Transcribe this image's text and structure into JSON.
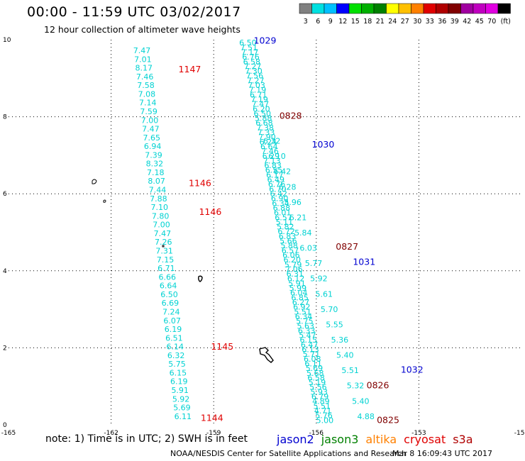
{
  "header": {
    "title": "00:00 - 11:59 UTC 03/02/2017",
    "subtitle": "12 hour collection of altimeter wave heights"
  },
  "colorbar": {
    "colors": [
      "#808080",
      "#00e0e0",
      "#00c0ff",
      "#0000ff",
      "#00e000",
      "#00b000",
      "#008000",
      "#ffff00",
      "#ffc000",
      "#ff8000",
      "#e00000",
      "#b00000",
      "#800000",
      "#a000a0",
      "#c000c0",
      "#e000e0",
      "#000000"
    ],
    "labels": [
      "3",
      "6",
      "9",
      "12",
      "15",
      "18",
      "21",
      "24",
      "27",
      "30",
      "33",
      "36",
      "39",
      "42",
      "45",
      "70",
      "(ft)"
    ]
  },
  "chart_data": {
    "type": "map",
    "xlim": [
      -165,
      -150
    ],
    "ylim": [
      0,
      10
    ],
    "x_ticks": [
      "-165",
      "-162",
      "-159",
      "-156",
      "-153",
      "-150"
    ],
    "y_ticks": [
      "0",
      "2",
      "4",
      "6",
      "8",
      "10"
    ],
    "grid": true,
    "tracks": [
      {
        "satellite": "jason2",
        "color": "#00d2d2",
        "x_start": -161.1,
        "y_start": 9.65,
        "x_end": -159.9,
        "y_end": 0.15,
        "values": [
          "7.47",
          "7.01",
          "8.17",
          "7.46",
          "7.58",
          "7.08",
          "7.14",
          "7.59",
          "7.00",
          "7.47",
          "7.65",
          "6.94",
          "7.39",
          "8.32",
          "7.18",
          "8.07",
          "7.44",
          "7.88",
          "7.10",
          "7.80",
          "7.00",
          "7.47",
          "7.26",
          "7.31",
          "7.15",
          "6.71",
          "6.66",
          "6.64",
          "6.50",
          "6.69",
          "7.24",
          "6.07",
          "6.19",
          "6.51",
          "6.14",
          "6.32",
          "5.75",
          "6.15",
          "6.19",
          "5.91",
          "5.92",
          "5.69",
          "6.11"
        ]
      },
      {
        "satellite": "jason2",
        "color": "#00d2d2",
        "x_start": -158.0,
        "y_start": 9.85,
        "x_end": -155.75,
        "y_end": 0.05,
        "values": [
          "6.50",
          "7.51",
          "7.17",
          "6.76",
          "6.58",
          "7.27",
          "7.30",
          "7.56",
          "7.27",
          "7.03",
          "7.19",
          "6.71",
          "7.19",
          "7.47",
          "6.20",
          "6.50",
          "5.88",
          "6.68",
          "7.38",
          "7.33",
          "7.90",
          "6.24",
          "6.64",
          "7.46",
          "6.29",
          "7.13",
          "6.83",
          "6.55",
          "6.17",
          "6.49",
          "6.76",
          "6.70",
          "6.42",
          "6.90",
          "6.34",
          "6.88",
          "6.01",
          "6.57",
          "5.11",
          "5.82",
          "6.72",
          "6.83",
          "5.66",
          "5.88",
          "6.57",
          "6.06",
          "6.20",
          "5.79",
          "7.06",
          "6.31",
          "6.12",
          "5.91",
          "5.99",
          "6.04",
          "6.85",
          "6.27",
          "6.92",
          "5.51",
          "6.34",
          "5.75",
          "5.63",
          "6.33",
          "5.47",
          "6.15",
          "6.47",
          "6.13",
          "5.71",
          "6.08",
          "6.11",
          "5.69",
          "5.68",
          "6.58",
          "5.19",
          "5.56",
          "5.93",
          "6.79",
          "4.89",
          "5.51",
          "4.71",
          "5.76",
          "5.00"
        ]
      },
      {
        "satellite": "jason2",
        "color": "#00d2d2",
        "x_start": -157.3,
        "y_start": 7.3,
        "x_end": -154.55,
        "y_end": 0.15,
        "values": [
          "6.32",
          "6.10",
          "6.42",
          "6.28",
          "5.96",
          "6.21",
          "5.84",
          "6.03",
          "5.77",
          "5.92",
          "5.61",
          "5.70",
          "5.55",
          "5.36",
          "5.40",
          "5.51",
          "5.32",
          "5.40",
          "4.88"
        ]
      }
    ],
    "pass_labels": [
      {
        "text": "1147",
        "satellite": "jason2",
        "x": -159.7,
        "y": 9.15,
        "color": "#e00000"
      },
      {
        "text": "1146",
        "satellite": "jason2",
        "x": -159.4,
        "y": 6.2,
        "color": "#e00000"
      },
      {
        "text": "1146",
        "satellite": "jason2",
        "x": -159.1,
        "y": 5.45,
        "color": "#e00000"
      },
      {
        "text": "1145",
        "satellite": "jason2",
        "x": -158.75,
        "y": 1.95,
        "color": "#e00000"
      },
      {
        "text": "1144",
        "satellite": "jason2",
        "x": -159.05,
        "y": 0.1,
        "color": "#e00000"
      },
      {
        "text": "1029",
        "satellite": "jason2",
        "x": -157.5,
        "y": 9.9,
        "color": "#0000d0"
      },
      {
        "text": "0828",
        "satellite": "jason2",
        "x": -156.75,
        "y": 7.95,
        "color": "#800000"
      },
      {
        "text": "1030",
        "satellite": "jason2",
        "x": -155.8,
        "y": 7.2,
        "color": "#0000d0"
      },
      {
        "text": "0827",
        "satellite": "jason2",
        "x": -155.1,
        "y": 4.55,
        "color": "#800000"
      },
      {
        "text": "1031",
        "satellite": "jason2",
        "x": -154.6,
        "y": 4.15,
        "color": "#0000d0"
      },
      {
        "text": "1032",
        "satellite": "jason2",
        "x": -153.2,
        "y": 1.35,
        "color": "#0000d0"
      },
      {
        "text": "0826",
        "satellite": "jason2",
        "x": -154.2,
        "y": 0.95,
        "color": "#800000"
      },
      {
        "text": "0825",
        "satellite": "jason2",
        "x": -153.9,
        "y": 0.05,
        "color": "#800000"
      }
    ]
  },
  "note": "note: 1) Time is in UTC; 2) SWH is in feet",
  "legend": [
    {
      "name": "jason2",
      "color": "#0000d0"
    },
    {
      "name": "jason3",
      "color": "#008000"
    },
    {
      "name": "altika",
      "color": "#ff8000"
    },
    {
      "name": "cryosat",
      "color": "#e00000"
    },
    {
      "name": "s3a",
      "color": "#b00000"
    }
  ],
  "footer": {
    "credit": "NOAA/NESDIS Center for Satellite Applications and Research",
    "timestamp": "Mar  8 16:09:43 UTC 2017"
  }
}
